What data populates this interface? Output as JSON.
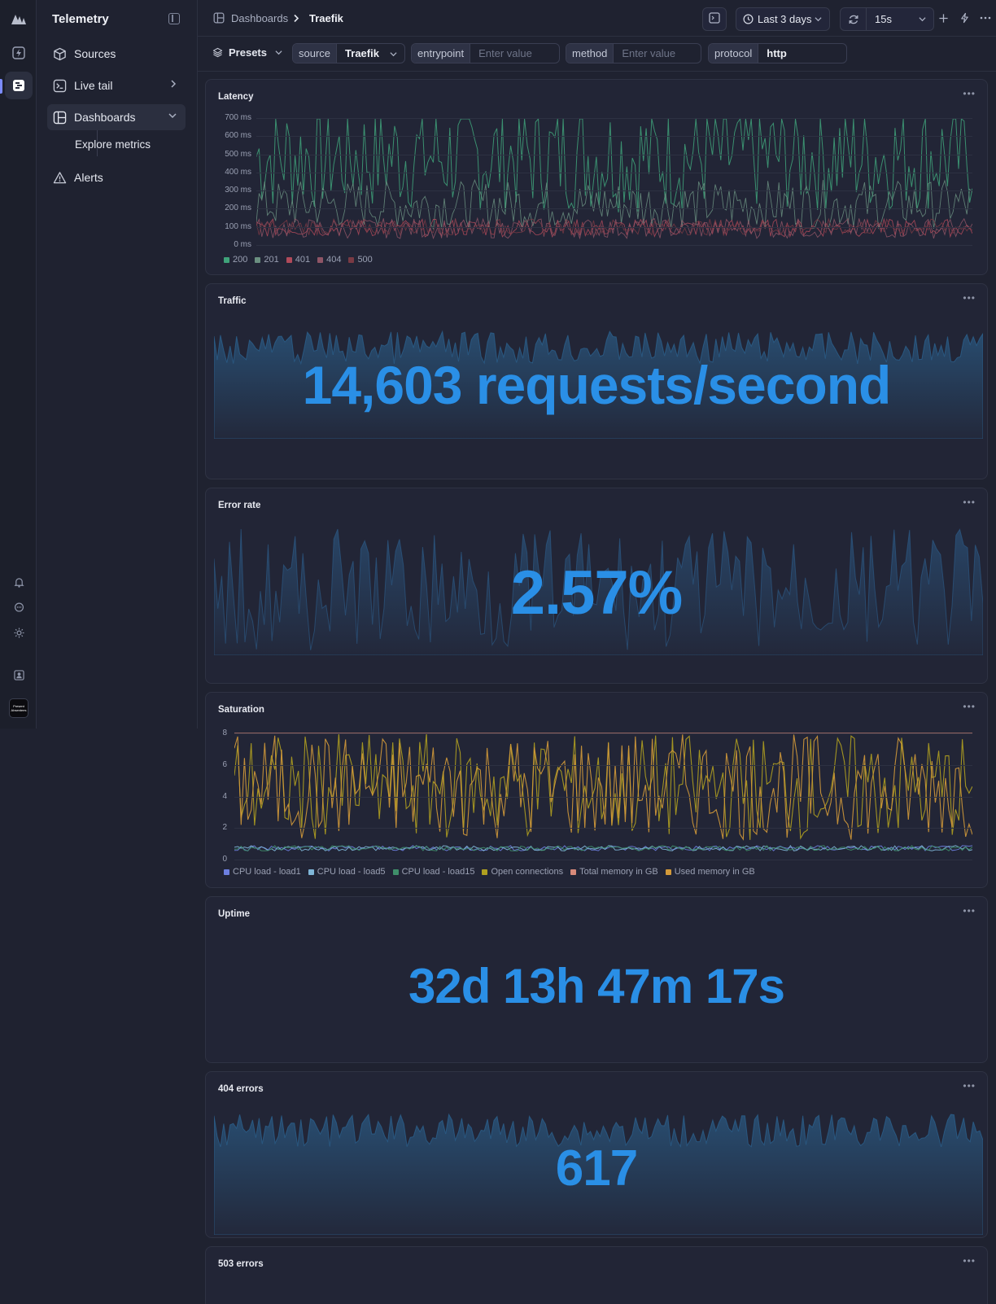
{
  "app": {
    "title": "Telemetry"
  },
  "sidebar": {
    "items": [
      {
        "label": "Sources",
        "icon": "cube-icon"
      },
      {
        "label": "Live tail",
        "icon": "terminal-icon"
      },
      {
        "label": "Dashboards",
        "icon": "dashboard-grid-icon"
      },
      {
        "label": "Alerts",
        "icon": "warning-triangle-icon"
      }
    ],
    "subitems": [
      {
        "label": "Explore metrics"
      }
    ]
  },
  "rail": {
    "logo_text": "Present Absentees"
  },
  "breadcrumb": {
    "root": "Dashboards",
    "current": "Traefik"
  },
  "toolbar": {
    "time_range": "Last 3 days",
    "refresh_interval": "15s"
  },
  "filters": {
    "presets_label": "Presets",
    "items": [
      {
        "key": "source",
        "value": "Traefik",
        "placeholder": ""
      },
      {
        "key": "entrypoint",
        "value": "",
        "placeholder": "Enter value"
      },
      {
        "key": "method",
        "value": "",
        "placeholder": "Enter value"
      },
      {
        "key": "protocol",
        "value": "http",
        "placeholder": ""
      }
    ]
  },
  "panels": {
    "latency": {
      "title": "Latency",
      "y_ticks": [
        "700 ms",
        "600 ms",
        "500 ms",
        "400 ms",
        "300 ms",
        "200 ms",
        "100 ms",
        "0 ms"
      ],
      "legend": [
        "200",
        "201",
        "401",
        "404",
        "500"
      ]
    },
    "traffic": {
      "title": "Traffic",
      "value": "14,603 requests/second"
    },
    "error_rate": {
      "title": "Error rate",
      "value": "2.57%"
    },
    "saturation": {
      "title": "Saturation",
      "y_ticks": [
        "8",
        "6",
        "4",
        "2",
        "0"
      ],
      "legend": [
        "CPU load - load1",
        "CPU load - load5",
        "CPU load - load15",
        "Open connections",
        "Total memory in GB",
        "Used memory in GB"
      ]
    },
    "uptime": {
      "title": "Uptime",
      "value": "32d 13h 47m 17s"
    },
    "errors_404": {
      "title": "404 errors",
      "value": "617"
    },
    "errors_503": {
      "title": "503 errors"
    }
  },
  "colors": {
    "accent": "#2a8fe6",
    "latency_200": "#3fa37a",
    "latency_201": "#6a8f80",
    "latency_401": "#b04a5a",
    "latency_404": "#8f5566",
    "latency_500": "#7a3a44",
    "sat_load1": "#6d7fe0",
    "sat_load5": "#7fb6d8",
    "sat_load15": "#3f8f6a",
    "sat_open_conn": "#b0a020",
    "sat_total_mem": "#d88a7a",
    "sat_used_mem": "#d39a3a"
  },
  "chart_data": [
    {
      "type": "line",
      "title": "Latency",
      "ylim": [
        0,
        700
      ],
      "series": [
        {
          "name": "200"
        },
        {
          "name": "201"
        },
        {
          "name": "401"
        },
        {
          "name": "404"
        },
        {
          "name": "500"
        }
      ],
      "legend": "bottom-left",
      "grid": true
    },
    {
      "type": "line",
      "title": "Saturation",
      "ylim": [
        0,
        8
      ],
      "series": [
        {
          "name": "CPU load - load1"
        },
        {
          "name": "CPU load - load5"
        },
        {
          "name": "CPU load - load15"
        },
        {
          "name": "Open connections"
        },
        {
          "name": "Total memory in GB",
          "values": [
            8
          ]
        },
        {
          "name": "Used memory in GB"
        }
      ],
      "legend": "bottom-left",
      "grid": true
    }
  ]
}
